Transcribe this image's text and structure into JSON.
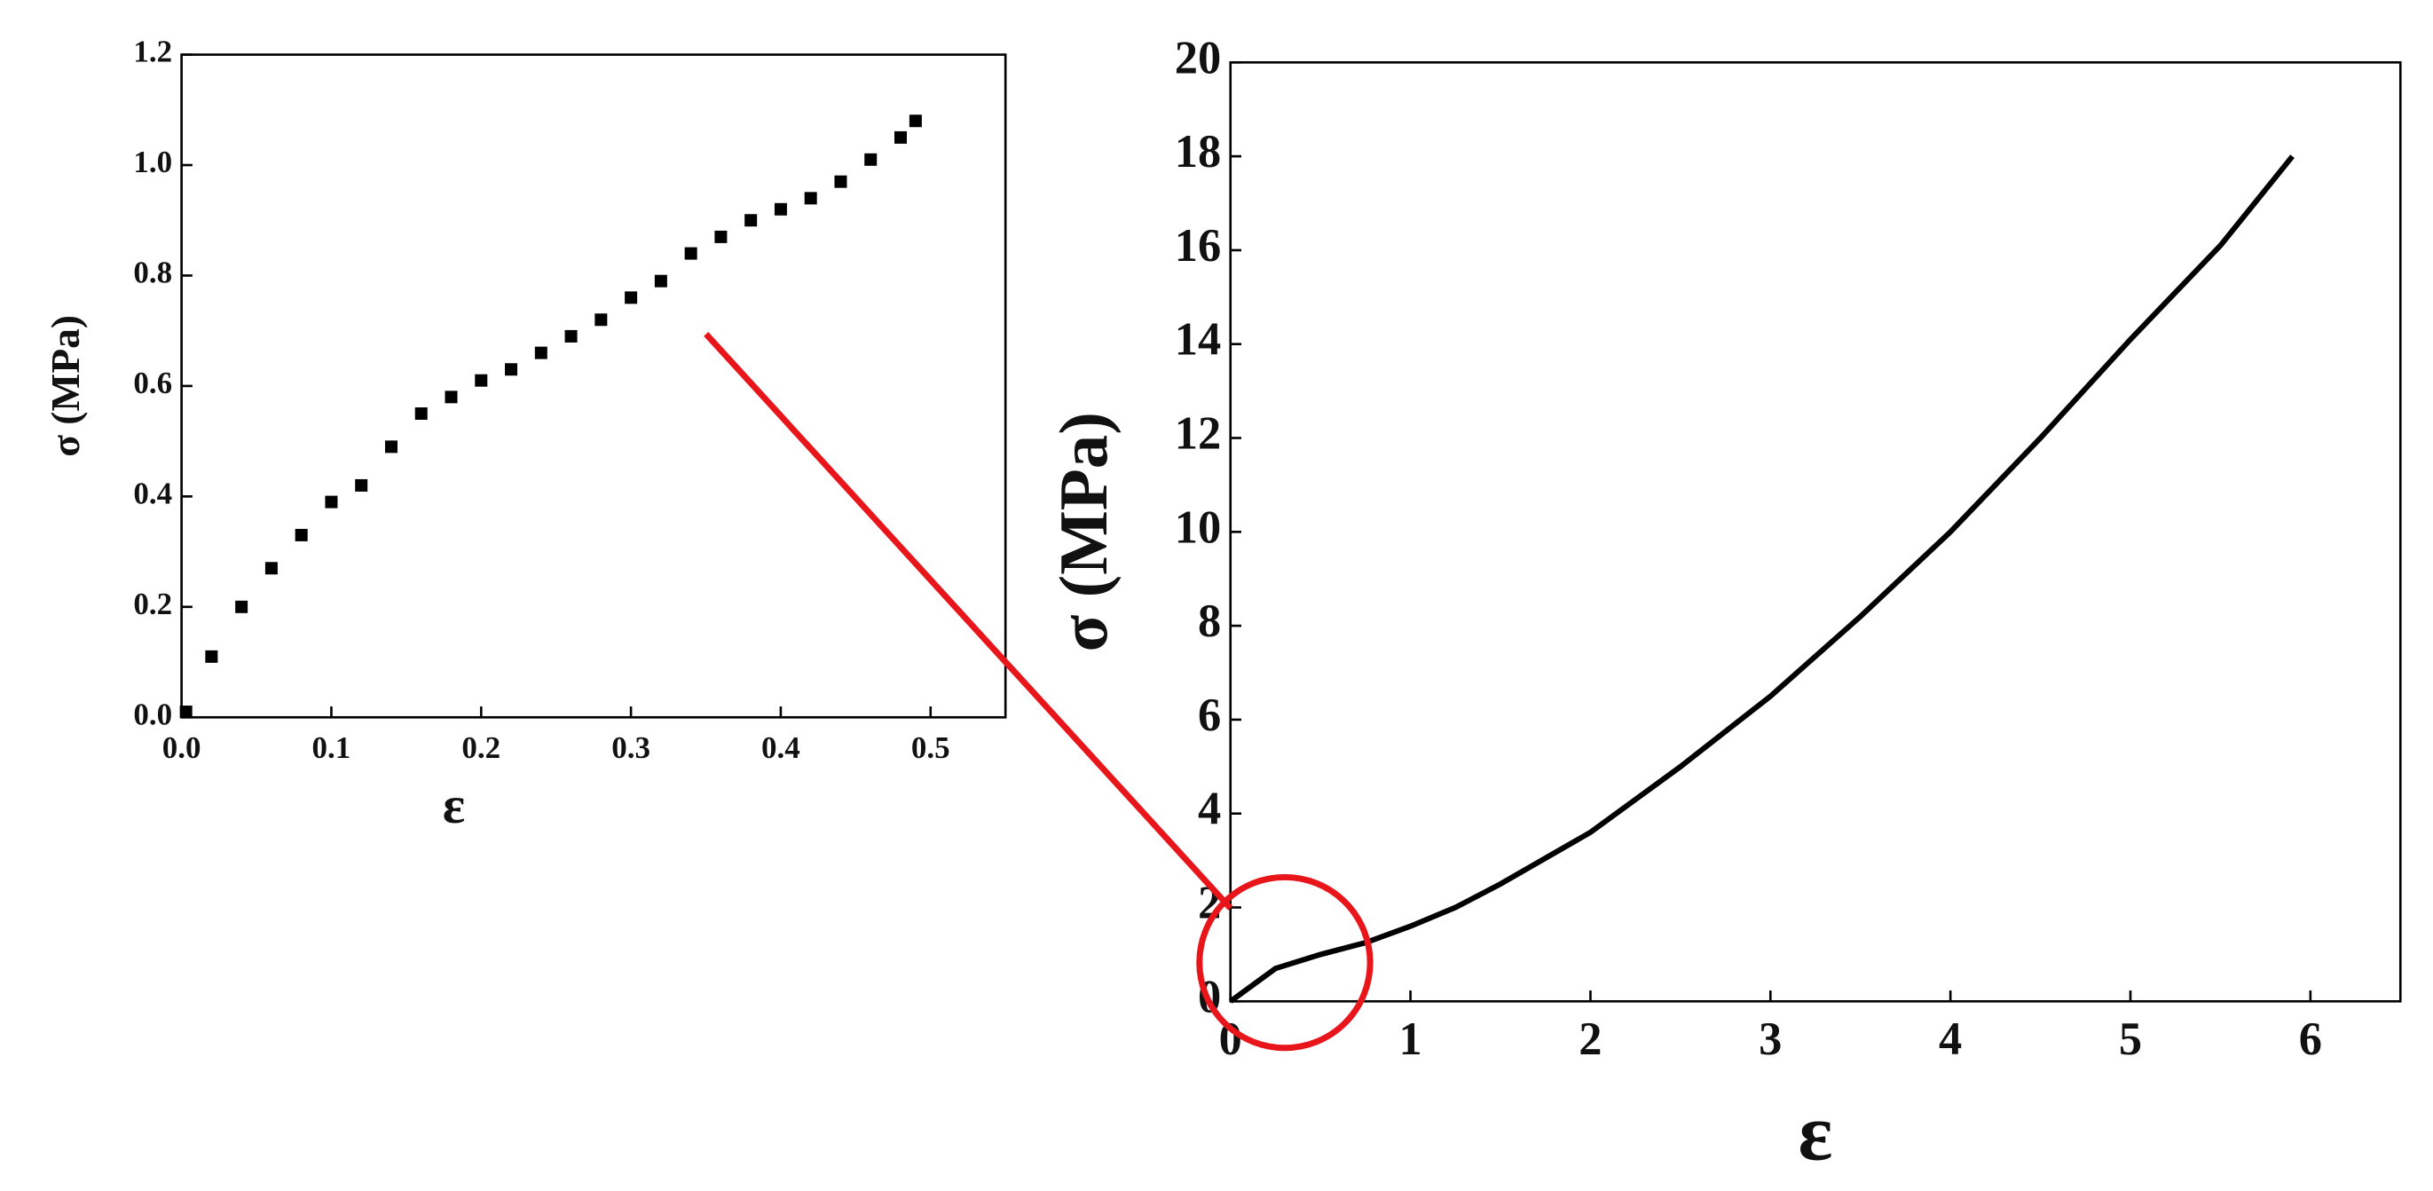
{
  "chart_data": [
    {
      "type": "scatter",
      "x_label": "ε",
      "y_label": "σ (MPa)",
      "x": [
        0.003,
        0.02,
        0.04,
        0.06,
        0.08,
        0.1,
        0.12,
        0.14,
        0.16,
        0.18,
        0.2,
        0.22,
        0.24,
        0.26,
        0.28,
        0.3,
        0.32,
        0.34,
        0.36,
        0.38,
        0.4,
        0.42,
        0.44,
        0.46,
        0.48,
        0.49
      ],
      "values": [
        0.01,
        0.11,
        0.2,
        0.27,
        0.33,
        0.39,
        0.42,
        0.49,
        0.55,
        0.58,
        0.61,
        0.63,
        0.66,
        0.69,
        0.72,
        0.76,
        0.79,
        0.84,
        0.87,
        0.9,
        0.92,
        0.94,
        0.97,
        1.01,
        1.05,
        1.08
      ],
      "color": "#000000",
      "xlim": [
        0,
        0.55
      ],
      "ylim": [
        0,
        1.2
      ],
      "xticks": [
        {
          "value": 0,
          "label": "0.0"
        },
        0.1,
        0.2,
        0.3,
        0.4,
        0.5
      ],
      "yticks": [
        {
          "value": 0,
          "label": "0.0"
        },
        0.2,
        0.4,
        0.6,
        0.8,
        {
          "value": 1,
          "label": "1.0"
        },
        1.2
      ]
    },
    {
      "type": "line",
      "x_label": "ε",
      "y_label": "σ (MPa)",
      "x": [
        0,
        0.25,
        0.5,
        0.75,
        1,
        1.25,
        1.5,
        2,
        2.5,
        3,
        3.5,
        4,
        4.5,
        5,
        5.5,
        5.9
      ],
      "values": [
        0,
        0.7,
        1.0,
        1.25,
        1.6,
        2.0,
        2.5,
        3.6,
        5.0,
        6.5,
        8.2,
        10.0,
        12.0,
        14.1,
        16.1,
        18.0
      ],
      "color": "#000000",
      "xlim": [
        0,
        6.5
      ],
      "ylim": [
        0,
        20
      ],
      "xticks": [
        0,
        1,
        2,
        3,
        4,
        5,
        6
      ],
      "yticks": [
        0,
        2,
        4,
        6,
        8,
        10,
        12,
        14,
        16,
        18,
        20
      ]
    }
  ]
}
